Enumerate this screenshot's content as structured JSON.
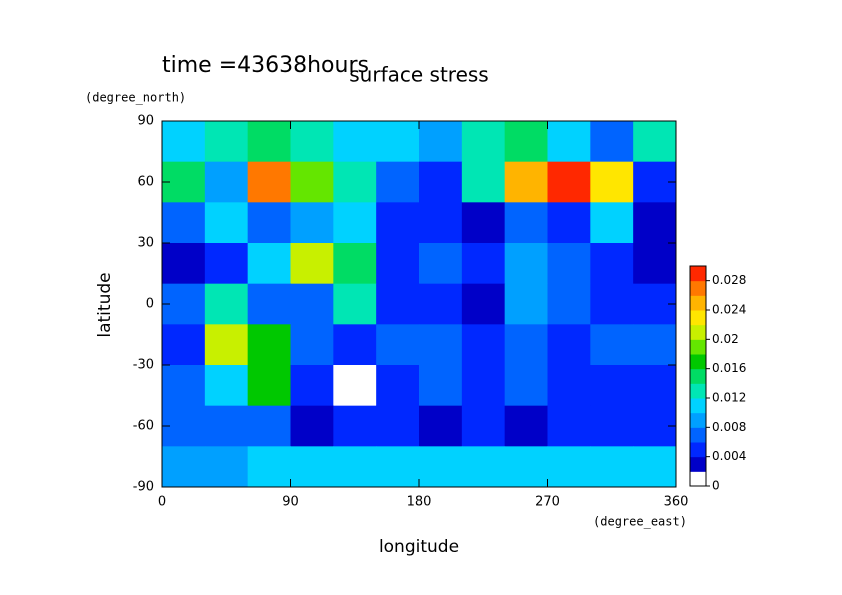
{
  "chart_data": {
    "type": "contour",
    "title": "surface stress",
    "subtitle": "time =43638hours",
    "xlabel": "longitude",
    "xunit": "(degree_east)",
    "ylabel": "latitude",
    "yunit": "(degree_north)",
    "xlim": [
      0,
      360
    ],
    "xticks": [
      0,
      90,
      180,
      270,
      360
    ],
    "ylim": [
      -90,
      90
    ],
    "yticks": [
      -90,
      -60,
      -30,
      0,
      30,
      60,
      90
    ],
    "x": [
      15,
      45,
      75,
      105,
      135,
      165,
      195,
      225,
      255,
      285,
      315,
      345
    ],
    "y": [
      80,
      60,
      40,
      20,
      0,
      -20,
      -40,
      -60,
      -80
    ],
    "z": [
      [
        0.01,
        0.012,
        0.014,
        0.012,
        0.01,
        0.01,
        0.008,
        0.012,
        0.014,
        0.01,
        0.006,
        0.012
      ],
      [
        0.014,
        0.008,
        0.026,
        0.018,
        0.012,
        0.006,
        0.004,
        0.012,
        0.024,
        0.03,
        0.022,
        0.004
      ],
      [
        0.006,
        0.01,
        0.006,
        0.008,
        0.01,
        0.004,
        0.004,
        0.002,
        0.006,
        0.004,
        0.01,
        0.002
      ],
      [
        0.002,
        0.004,
        0.01,
        0.02,
        0.014,
        0.004,
        0.006,
        0.004,
        0.008,
        0.006,
        0.004,
        0.002
      ],
      [
        0.006,
        0.012,
        0.006,
        0.006,
        0.012,
        0.004,
        0.004,
        0.002,
        0.008,
        0.006,
        0.004,
        0.004
      ],
      [
        0.004,
        0.02,
        0.016,
        0.006,
        0.004,
        0.006,
        0.006,
        0.004,
        0.006,
        0.004,
        0.006,
        0.006
      ],
      [
        0.006,
        0.01,
        0.016,
        0.004,
        0.001,
        0.004,
        0.006,
        0.004,
        0.006,
        0.004,
        0.004,
        0.004
      ],
      [
        0.006,
        0.006,
        0.006,
        0.002,
        0.004,
        0.004,
        0.002,
        0.004,
        0.002,
        0.004,
        0.004,
        0.004
      ],
      [
        0.008,
        0.008,
        0.01,
        0.01,
        0.01,
        0.01,
        0.01,
        0.01,
        0.01,
        0.01,
        0.01,
        0.01
      ]
    ],
    "clim": [
      0,
      0.03
    ],
    "cticks": [
      0,
      0.004,
      0.008,
      0.012,
      0.016,
      0.02,
      0.024,
      0.028
    ],
    "colors": [
      "#ffffff",
      "#0000c8",
      "#0028ff",
      "#0064ff",
      "#00a0ff",
      "#00d2ff",
      "#00e6b4",
      "#00dc64",
      "#00c800",
      "#64e600",
      "#c8f000",
      "#ffe600",
      "#ffb400",
      "#ff7800",
      "#ff2800"
    ]
  }
}
